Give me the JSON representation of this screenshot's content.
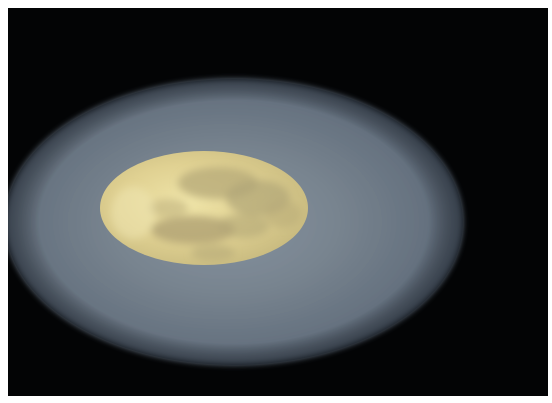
{
  "image": {
    "subject": "moon",
    "colors": {
      "background": "#030405",
      "frame": "#ffffff",
      "halo_center": "#7f8a96",
      "halo_mid": "#6b7886",
      "halo_edge": "#4c5867",
      "moon_light": "#e6dc9e",
      "moon_mid": "#d9c98a",
      "moon_shadow": "#b9ad7a"
    }
  }
}
